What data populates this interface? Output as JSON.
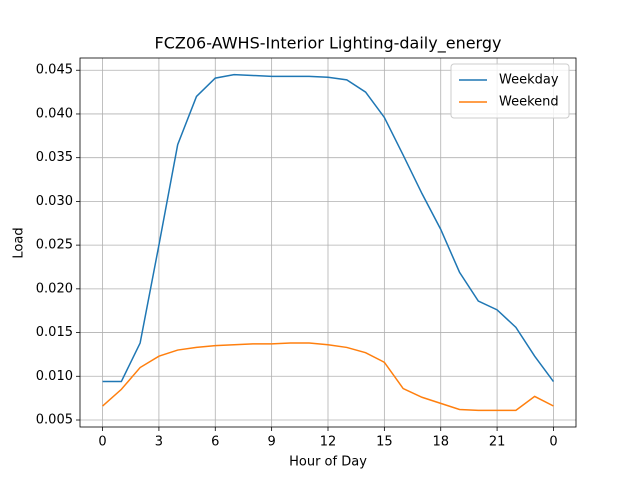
{
  "chart_data": {
    "type": "line",
    "title": "FCZ06-AWHS-Interior Lighting-daily_energy",
    "x_label": "Hour of Day",
    "y_label": "Load",
    "x": [
      0,
      1,
      2,
      3,
      4,
      5,
      6,
      7,
      8,
      9,
      10,
      11,
      12,
      13,
      14,
      15,
      16,
      17,
      18,
      19,
      20,
      21,
      22,
      23,
      24
    ],
    "series": [
      {
        "name": "Weekday",
        "color": "#1f77b4",
        "values": [
          0.0094,
          0.0094,
          0.0138,
          0.025,
          0.0365,
          0.042,
          0.0441,
          0.0445,
          0.0444,
          0.0443,
          0.0443,
          0.0443,
          0.0442,
          0.0439,
          0.0425,
          0.0396,
          0.0353,
          0.0309,
          0.0268,
          0.0219,
          0.0186,
          0.0176,
          0.0156,
          0.0123,
          0.0094
        ]
      },
      {
        "name": "Weekend",
        "color": "#ff7f0e",
        "values": [
          0.0066,
          0.0085,
          0.011,
          0.0123,
          0.013,
          0.0133,
          0.0135,
          0.0136,
          0.0137,
          0.0137,
          0.0138,
          0.0138,
          0.0136,
          0.0133,
          0.0127,
          0.0116,
          0.0086,
          0.0076,
          0.0069,
          0.0062,
          0.0061,
          0.0061,
          0.0061,
          0.0077,
          0.0066
        ]
      }
    ],
    "xlim": [
      -1.2,
      25.2
    ],
    "ylim": [
      0.0042,
      0.0464
    ],
    "xticks": [
      0,
      3,
      6,
      9,
      12,
      15,
      18,
      21,
      {
        "value": 24,
        "label": "0"
      }
    ],
    "yticks": [
      0.005,
      {
        "value": 0.01,
        "label": "0.010"
      },
      0.015,
      {
        "value": 0.02,
        "label": "0.020"
      },
      0.025,
      {
        "value": 0.03,
        "label": "0.030"
      },
      0.035,
      {
        "value": 0.04,
        "label": "0.040"
      },
      0.045
    ],
    "grid": true,
    "legend": "upper right"
  }
}
